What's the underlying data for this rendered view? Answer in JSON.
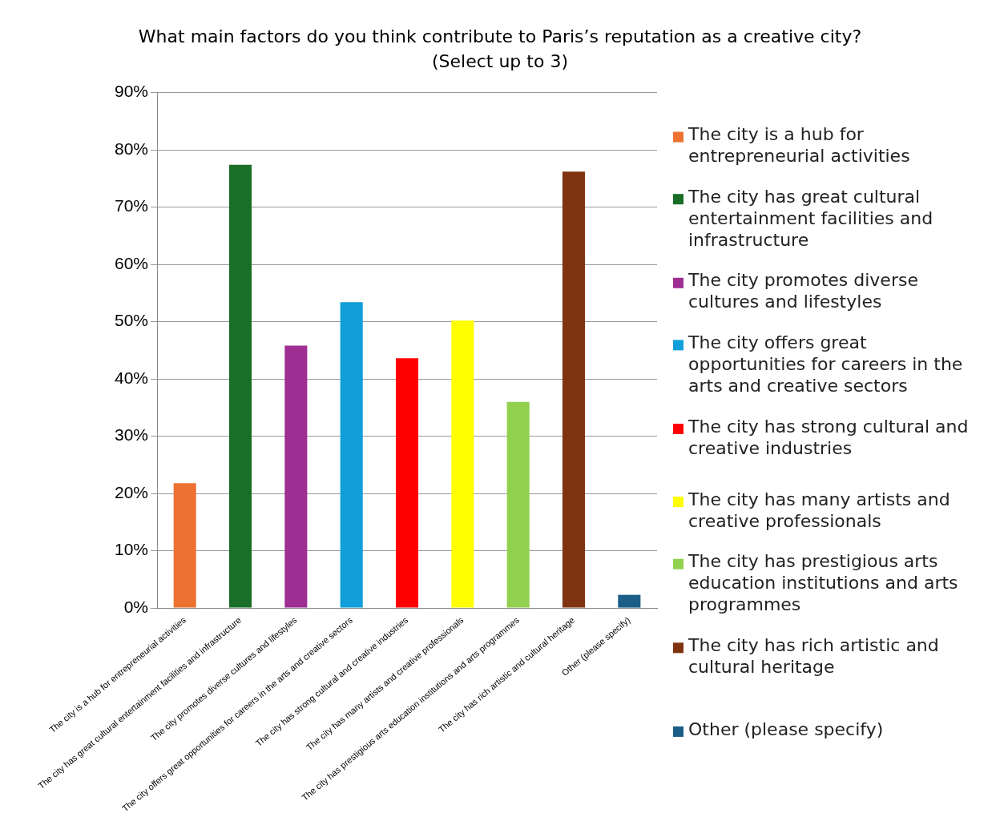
{
  "chart_data": {
    "type": "bar",
    "title": "What main factors do you think contribute to Paris’s reputation as a creative city?\n(Select up to 3)",
    "categories": [
      "The city is a hub for entrepreneurial activities",
      "The city has great cultural entertainment facilities and infrastructure",
      "The city promotes diverse cultures and lifestyles",
      "The city offers great opportunities for careers in the arts and creative sectors",
      "The city has strong cultural and creative industries",
      "The city has many artists and creative professionals",
      "The city has prestigious arts education institutions and arts programmes",
      "The city has rich artistic and cultural heritage",
      "Other (please specify)"
    ],
    "series": [
      {
        "name": "The city is a hub for entrepreneurial activities",
        "color": "#ed7232",
        "values": [
          21.8,
          null,
          null,
          null,
          null,
          null,
          null,
          null,
          null
        ]
      },
      {
        "name": "The city has great cultural entertainment facilities and infrastructure",
        "color": "#1a6e28",
        "values": [
          null,
          77.4,
          null,
          null,
          null,
          null,
          null,
          null,
          null
        ]
      },
      {
        "name": "The city promotes diverse cultures and lifestyles",
        "color": "#9e2e92",
        "values": [
          null,
          null,
          45.8,
          null,
          null,
          null,
          null,
          null,
          null
        ]
      },
      {
        "name": "The city offers great opportunities for careers in the arts and creative sectors",
        "color": "#109fd9",
        "values": [
          null,
          null,
          null,
          53.4,
          null,
          null,
          null,
          null,
          null
        ]
      },
      {
        "name": "The city has strong cultural and creative industries",
        "color": "#fe0000",
        "values": [
          null,
          null,
          null,
          null,
          43.6,
          null,
          null,
          null,
          null
        ]
      },
      {
        "name": "The city has many artists and creative professionals",
        "color": "#ffff00",
        "values": [
          null,
          null,
          null,
          null,
          null,
          50.2,
          null,
          null,
          null
        ]
      },
      {
        "name": "The city has prestigious arts education institutions and arts programmes",
        "color": "#92d050",
        "values": [
          null,
          null,
          null,
          null,
          null,
          null,
          36,
          null,
          null
        ]
      },
      {
        "name": "The city has rich artistic and cultural heritage",
        "color": "#7f3310",
        "values": [
          null,
          null,
          null,
          null,
          null,
          null,
          null,
          76.2,
          null
        ]
      },
      {
        "name": "Other (please specify)",
        "color": "#1b5e86",
        "values": [
          null,
          null,
          null,
          null,
          null,
          null,
          null,
          null,
          2.3
        ]
      }
    ],
    "ylim": [
      0,
      90
    ],
    "yticks": [
      {
        "value": 0,
        "label": "0%"
      },
      {
        "value": 10,
        "label": "10%"
      },
      {
        "value": 20,
        "label": "20%"
      },
      {
        "value": 30,
        "label": "30%"
      },
      {
        "value": 40,
        "label": "40%"
      },
      {
        "value": 50,
        "label": "50%"
      },
      {
        "value": 60,
        "label": "60%"
      },
      {
        "value": 70,
        "label": "70%"
      },
      {
        "value": 80,
        "label": "80%"
      },
      {
        "value": 90,
        "label": "90%"
      }
    ],
    "grid": "y",
    "legend": "right"
  }
}
